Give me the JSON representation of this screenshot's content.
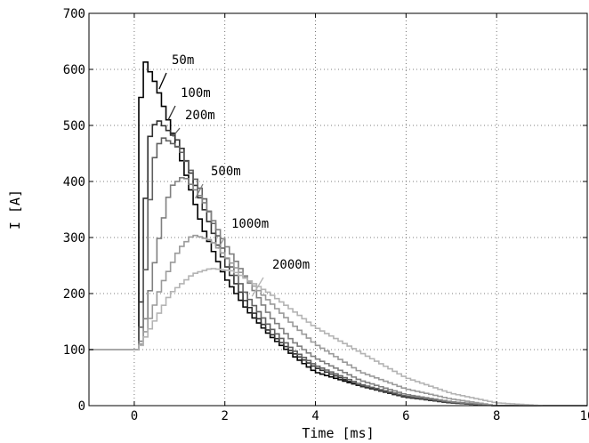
{
  "chart_data": {
    "type": "line",
    "title": "",
    "xlabel": "Time [ms]",
    "ylabel": "I [A]",
    "xlim": [
      -1,
      10
    ],
    "ylim": [
      0,
      700
    ],
    "xticks": [
      0,
      2,
      4,
      6,
      8,
      10
    ],
    "yticks": [
      0,
      100,
      200,
      300,
      400,
      500,
      600,
      700
    ],
    "grid": true,
    "step": true,
    "step_ms": 0.1,
    "baseline": 100,
    "series": [
      {
        "name": "50m",
        "color": "#000000",
        "values": [
          [
            -1,
            100
          ],
          [
            0.1,
            100
          ],
          [
            0.15,
            550
          ],
          [
            0.25,
            613
          ],
          [
            0.5,
            570
          ],
          [
            1,
            450
          ],
          [
            1.5,
            320
          ],
          [
            2,
            230
          ],
          [
            2.5,
            170
          ],
          [
            3,
            125
          ],
          [
            3.5,
            90
          ],
          [
            4,
            60
          ],
          [
            5,
            35
          ],
          [
            6,
            15
          ],
          [
            7,
            5
          ],
          [
            8,
            0
          ],
          [
            10,
            0
          ]
        ]
      },
      {
        "name": "100m",
        "color": "#303030",
        "values": [
          [
            -1,
            100
          ],
          [
            0.1,
            100
          ],
          [
            0.2,
            270
          ],
          [
            0.3,
            470
          ],
          [
            0.5,
            512
          ],
          [
            1,
            470
          ],
          [
            1.5,
            360
          ],
          [
            2,
            255
          ],
          [
            2.5,
            180
          ],
          [
            3,
            130
          ],
          [
            3.5,
            95
          ],
          [
            4,
            68
          ],
          [
            5,
            35
          ],
          [
            6,
            15
          ],
          [
            7,
            5
          ],
          [
            8,
            0
          ],
          [
            10,
            0
          ]
        ]
      },
      {
        "name": "200m",
        "color": "#606060",
        "values": [
          [
            -1,
            100
          ],
          [
            0.1,
            100
          ],
          [
            0.2,
            180
          ],
          [
            0.4,
            430
          ],
          [
            0.6,
            480
          ],
          [
            1,
            460
          ],
          [
            1.5,
            380
          ],
          [
            2,
            270
          ],
          [
            2.5,
            195
          ],
          [
            3,
            140
          ],
          [
            3.5,
            100
          ],
          [
            4,
            72
          ],
          [
            5,
            38
          ],
          [
            6,
            17
          ],
          [
            7,
            6
          ],
          [
            8,
            0
          ],
          [
            10,
            0
          ]
        ]
      },
      {
        "name": "500m",
        "color": "#808080",
        "values": [
          [
            -1,
            100
          ],
          [
            0.1,
            100
          ],
          [
            0.2,
            130
          ],
          [
            0.5,
            280
          ],
          [
            0.8,
            390
          ],
          [
            1.1,
            410
          ],
          [
            1.5,
            370
          ],
          [
            2,
            290
          ],
          [
            2.5,
            225
          ],
          [
            3,
            160
          ],
          [
            3.5,
            115
          ],
          [
            4,
            85
          ],
          [
            5,
            45
          ],
          [
            6,
            20
          ],
          [
            7,
            7
          ],
          [
            8,
            0
          ],
          [
            10,
            0
          ]
        ]
      },
      {
        "name": "1000m",
        "color": "#9a9a9a",
        "values": [
          [
            -1,
            100
          ],
          [
            0.1,
            100
          ],
          [
            0.2,
            120
          ],
          [
            0.6,
            215
          ],
          [
            1,
            280
          ],
          [
            1.3,
            305
          ],
          [
            1.7,
            295
          ],
          [
            2.2,
            250
          ],
          [
            3,
            185
          ],
          [
            3.5,
            145
          ],
          [
            4,
            110
          ],
          [
            5,
            60
          ],
          [
            6,
            30
          ],
          [
            7,
            12
          ],
          [
            8,
            0
          ],
          [
            10,
            0
          ]
        ]
      },
      {
        "name": "2000m",
        "color": "#b4b4b4",
        "values": [
          [
            -1,
            100
          ],
          [
            0.1,
            100
          ],
          [
            0.3,
            130
          ],
          [
            0.8,
            200
          ],
          [
            1.3,
            235
          ],
          [
            1.7,
            245
          ],
          [
            2.2,
            240
          ],
          [
            3,
            200
          ],
          [
            4,
            140
          ],
          [
            5,
            95
          ],
          [
            6,
            50
          ],
          [
            7,
            22
          ],
          [
            8,
            5
          ],
          [
            9,
            0
          ],
          [
            10,
            0
          ]
        ]
      }
    ],
    "annotations": [
      {
        "text": "50m",
        "series": "50m",
        "at": [
          0.55,
          565
        ]
      },
      {
        "text": "100m",
        "series": "100m",
        "at": [
          0.75,
          510
        ]
      },
      {
        "text": "200m",
        "series": "200m",
        "at": [
          0.85,
          480
        ]
      },
      {
        "text": "500m",
        "series": "500m",
        "at": [
          1.35,
          370
        ]
      },
      {
        "text": "1000m",
        "series": "1000m",
        "at": [
          1.85,
          280
        ]
      },
      {
        "text": "2000m",
        "series": "2000m",
        "at": [
          2.6,
          195
        ]
      }
    ]
  }
}
